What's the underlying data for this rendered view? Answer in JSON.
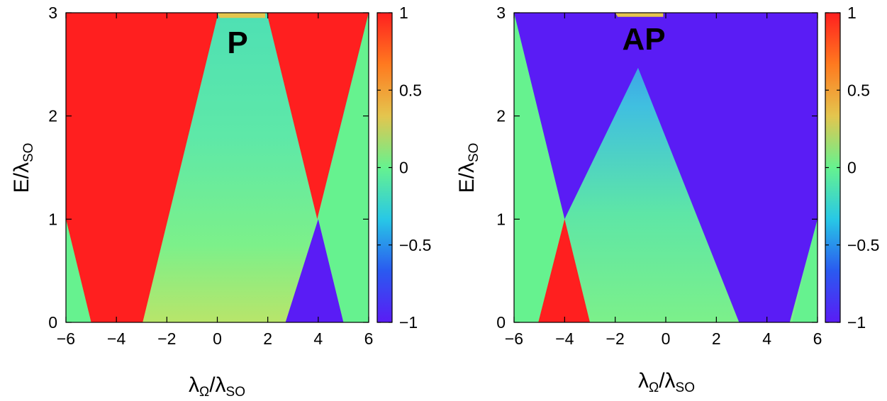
{
  "chart_data": [
    {
      "type": "heatmap",
      "title": "P",
      "xlabel": {
        "main": "λ",
        "sub1": "Ω",
        "mid": "/λ",
        "sub2": "SO"
      },
      "ylabel": {
        "main": "E/λ",
        "sub": "SO"
      },
      "xlim": [
        -6,
        6
      ],
      "ylim": [
        0,
        3
      ],
      "xticks": [
        -6,
        -4,
        -2,
        0,
        2,
        4,
        6
      ],
      "xtick_labels": [
        "−6",
        "−4",
        "−2",
        "0",
        "2",
        "4",
        "6"
      ],
      "yticks": [
        0,
        1,
        2,
        3
      ],
      "ytick_labels": [
        "0",
        "1",
        "2",
        "3"
      ],
      "colorbar": {
        "range": [
          -1,
          1
        ],
        "ticks": [
          -1,
          -0.5,
          0,
          0.5,
          1
        ],
        "tick_labels": [
          "−1",
          "−0.5",
          "0",
          "0.5",
          "1"
        ],
        "colormap": [
          "#5a1cf5",
          "#2a5af0",
          "#28c8e6",
          "#66f28f",
          "#e4c54e",
          "#ff7a1f",
          "#ff1f1f"
        ]
      },
      "regions": [
        {
          "value": 1,
          "color": "#ff1f1f",
          "polygon": [
            [
              -6,
              3
            ],
            [
              0.04,
              3
            ],
            [
              -2.96,
              0
            ],
            [
              -5.04,
              0
            ],
            [
              -6,
              0.96
            ]
          ]
        },
        {
          "value": 1,
          "color": "#ff1f1f",
          "polygon": [
            [
              1.96,
              3
            ],
            [
              6,
              3
            ],
            [
              3.96,
              1
            ]
          ]
        },
        {
          "value": 0.1,
          "color": "#66f28f",
          "polygon": [
            [
              -6,
              1
            ],
            [
              -5,
              0
            ],
            [
              -6,
              0
            ]
          ]
        },
        {
          "value": 0.1,
          "color": "#66f28f",
          "polygon": [
            [
              6,
              3
            ],
            [
              4,
              1
            ],
            [
              5,
              0
            ],
            [
              6,
              0
            ]
          ]
        },
        {
          "value": -1,
          "color": "#5a1cf5",
          "polygon": [
            [
              4,
              1
            ],
            [
              5,
              0
            ],
            [
              2.7,
              0
            ]
          ]
        },
        {
          "value": 0.5,
          "color": "#e4c54e",
          "polygon": [
            [
              0,
              3
            ],
            [
              1.9,
              3
            ],
            [
              1.9,
              2.95
            ],
            [
              0.1,
              2.95
            ]
          ]
        }
      ]
    },
    {
      "type": "heatmap",
      "title": "AP",
      "xlabel": {
        "main": "λ",
        "sub1": "Ω",
        "mid": "/λ",
        "sub2": "SO"
      },
      "ylabel": {
        "main": "E/λ",
        "sub": "SO"
      },
      "xlim": [
        -6,
        6
      ],
      "ylim": [
        0,
        3
      ],
      "xticks": [
        -6,
        -4,
        -2,
        0,
        2,
        4,
        6
      ],
      "xtick_labels": [
        "−6",
        "−4",
        "−2",
        "0",
        "2",
        "4",
        "6"
      ],
      "yticks": [
        0,
        1,
        2,
        3
      ],
      "ytick_labels": [
        "0",
        "1",
        "2",
        "3"
      ],
      "colorbar": {
        "range": [
          -1,
          1
        ],
        "ticks": [
          -1,
          -0.5,
          0,
          0.5,
          1
        ],
        "tick_labels": [
          "−1",
          "−0.5",
          "0",
          "0.5",
          "1"
        ],
        "colormap": [
          "#5a1cf5",
          "#2a5af0",
          "#28c8e6",
          "#66f28f",
          "#e4c54e",
          "#ff7a1f",
          "#ff1f1f"
        ]
      },
      "regions": [
        {
          "value": -1,
          "color": "#5a1cf5",
          "polygon": [
            [
              -6,
              3
            ],
            [
              6,
              3
            ],
            [
              6,
              1
            ],
            [
              4.9,
              0
            ],
            [
              2.9,
              0
            ],
            [
              -1.96,
              3
            ],
            [
              -4,
              1
            ]
          ]
        },
        {
          "value": -1,
          "color": "#5a1cf5",
          "polygon": [
            [
              -6,
              3
            ],
            [
              -4,
              1
            ],
            [
              -0.04,
              3
            ]
          ]
        },
        {
          "value": 0.1,
          "color": "#66f28f",
          "polygon": [
            [
              -6,
              3
            ],
            [
              -4,
              1
            ],
            [
              -5,
              0
            ],
            [
              -6,
              0
            ]
          ]
        },
        {
          "value": 0.1,
          "color": "#66f28f",
          "polygon": [
            [
              6,
              1
            ],
            [
              5,
              0
            ],
            [
              6,
              0
            ]
          ]
        },
        {
          "value": 1,
          "color": "#ff1f1f",
          "polygon": [
            [
              -4,
              1
            ],
            [
              -5.04,
              0
            ],
            [
              -3,
              0
            ]
          ]
        },
        {
          "value": 0.4,
          "color": "#e4c54e",
          "polygon": [
            [
              -2,
              3
            ],
            [
              -0.1,
              3
            ],
            [
              -0.1,
              2.96
            ],
            [
              -1.9,
              2.96
            ]
          ]
        }
      ]
    }
  ]
}
